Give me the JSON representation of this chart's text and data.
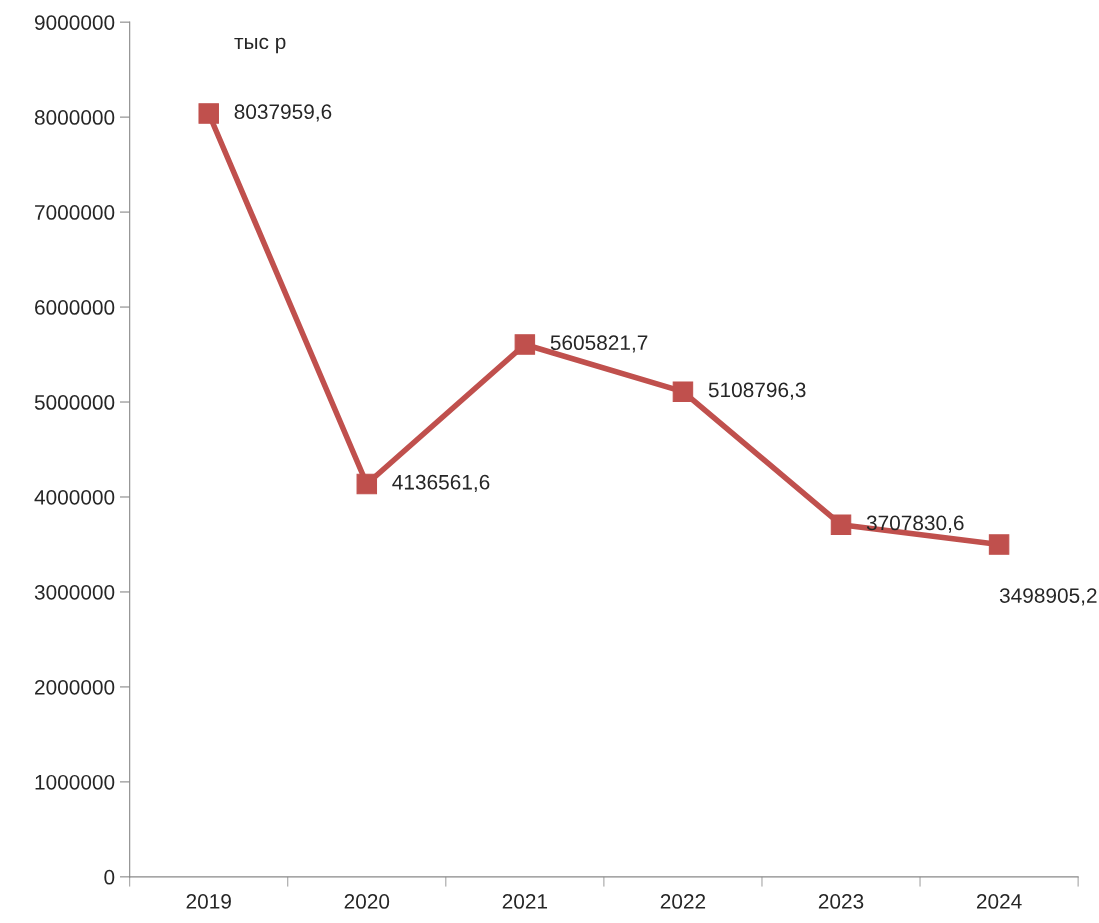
{
  "chart_data": {
    "type": "line",
    "categories": [
      "2019",
      "2020",
      "2021",
      "2022",
      "2023",
      "2024"
    ],
    "series": [
      {
        "color": "#c0504d",
        "values": [
          8037959.6,
          4136561.6,
          5605821.7,
          5108796.3,
          3707830.6,
          3498905.2
        ],
        "value_labels": [
          "8037959,6",
          "4136561,6",
          "5605821,7",
          "5108796,3",
          "3707830,6",
          "3498905,2"
        ]
      }
    ],
    "annotations": [
      "тыс р"
    ],
    "ylim": [
      0,
      9000000
    ],
    "yticks": [
      0,
      1000000,
      2000000,
      3000000,
      4000000,
      5000000,
      6000000,
      7000000,
      8000000,
      9000000
    ],
    "marker": "square",
    "line_style": "solid",
    "grid": false,
    "legend": false
  }
}
